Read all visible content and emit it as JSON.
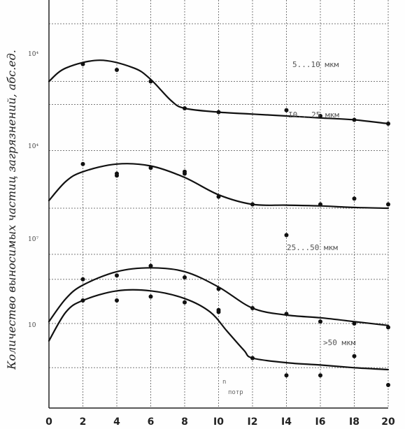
{
  "chart_data": {
    "type": "line",
    "ylabel": "Количество выносимых частиц загрязнений, абс.ед.",
    "x_tick_labels": [
      "0",
      "2",
      "4",
      "6",
      "8",
      "I0",
      "I2",
      "I4",
      "I6",
      "I8",
      "20"
    ],
    "x_ticks": [
      0,
      2,
      4,
      6,
      8,
      10,
      12,
      14,
      16,
      18,
      20
    ],
    "xlim": [
      0,
      20
    ],
    "y_tick_labels": [
      "10⁴",
      "10⁴",
      "10⁷",
      "10"
    ],
    "x_note": {
      "main": "n",
      "subscript": "потр"
    },
    "grid": true,
    "series": [
      {
        "name": "5...10 мкм",
        "points": [
          [
            2,
            8.95
          ],
          [
            4,
            8.8
          ],
          [
            6,
            8.5
          ],
          [
            8,
            7.8
          ],
          [
            10,
            7.7
          ],
          [
            14,
            7.75
          ],
          [
            16,
            7.6
          ],
          [
            18,
            7.5
          ],
          [
            20,
            7.4
          ]
        ],
        "curve": [
          [
            0,
            8.5
          ],
          [
            1,
            8.85
          ],
          [
            3,
            9.05
          ],
          [
            5,
            8.85
          ],
          [
            6,
            8.55
          ],
          [
            7.2,
            8.0
          ],
          [
            8,
            7.8
          ],
          [
            10,
            7.7
          ],
          [
            12,
            7.65
          ],
          [
            14,
            7.6
          ],
          [
            16,
            7.55
          ],
          [
            18,
            7.5
          ],
          [
            20,
            7.4
          ]
        ]
      },
      {
        "name": "I0...25 мкм",
        "points": [
          [
            2,
            6.35
          ],
          [
            4,
            6.1
          ],
          [
            4,
            6.05
          ],
          [
            6,
            6.25
          ],
          [
            8,
            6.15
          ],
          [
            8,
            6.1
          ],
          [
            10,
            5.5
          ],
          [
            12,
            5.3
          ],
          [
            14,
            4.5
          ],
          [
            16,
            5.3
          ],
          [
            18,
            5.45
          ],
          [
            20,
            5.3
          ]
        ],
        "curve": [
          [
            0,
            5.4
          ],
          [
            1,
            5.9
          ],
          [
            2,
            6.15
          ],
          [
            4,
            6.35
          ],
          [
            6,
            6.3
          ],
          [
            8,
            6.0
          ],
          [
            10,
            5.55
          ],
          [
            12,
            5.3
          ],
          [
            14,
            5.28
          ],
          [
            16,
            5.26
          ],
          [
            18,
            5.22
          ],
          [
            20,
            5.2
          ]
        ]
      },
      {
        "name": "25...50 мкм",
        "points": [
          [
            2,
            3.35
          ],
          [
            4,
            3.45
          ],
          [
            6,
            3.7
          ],
          [
            8,
            3.4
          ],
          [
            10,
            3.1
          ],
          [
            12,
            2.6
          ],
          [
            14,
            2.45
          ],
          [
            16,
            2.25
          ],
          [
            18,
            2.2
          ],
          [
            20,
            2.1
          ]
        ],
        "curve": [
          [
            0,
            2.25
          ],
          [
            1,
            2.85
          ],
          [
            2,
            3.2
          ],
          [
            4,
            3.55
          ],
          [
            6,
            3.65
          ],
          [
            8,
            3.55
          ],
          [
            10,
            3.15
          ],
          [
            12,
            2.6
          ],
          [
            14,
            2.42
          ],
          [
            16,
            2.35
          ],
          [
            18,
            2.25
          ],
          [
            20,
            2.15
          ]
        ]
      },
      {
        "name": ">50 мкм",
        "points": [
          [
            2,
            2.8
          ],
          [
            4,
            2.8
          ],
          [
            6,
            2.9
          ],
          [
            8,
            2.75
          ],
          [
            10,
            2.55
          ],
          [
            10,
            2.5
          ],
          [
            12,
            1.3
          ],
          [
            14,
            0.85
          ],
          [
            16,
            0.85
          ],
          [
            18,
            1.35
          ],
          [
            20,
            0.6
          ]
        ],
        "curve": [
          [
            0,
            1.75
          ],
          [
            1,
            2.5
          ],
          [
            2,
            2.8
          ],
          [
            4,
            3.05
          ],
          [
            6,
            3.05
          ],
          [
            8,
            2.85
          ],
          [
            9.5,
            2.5
          ],
          [
            10.5,
            2.0
          ],
          [
            11.5,
            1.5
          ],
          [
            12,
            1.3
          ],
          [
            14,
            1.18
          ],
          [
            16,
            1.12
          ],
          [
            18,
            1.05
          ],
          [
            20,
            1.0
          ]
        ]
      }
    ]
  }
}
